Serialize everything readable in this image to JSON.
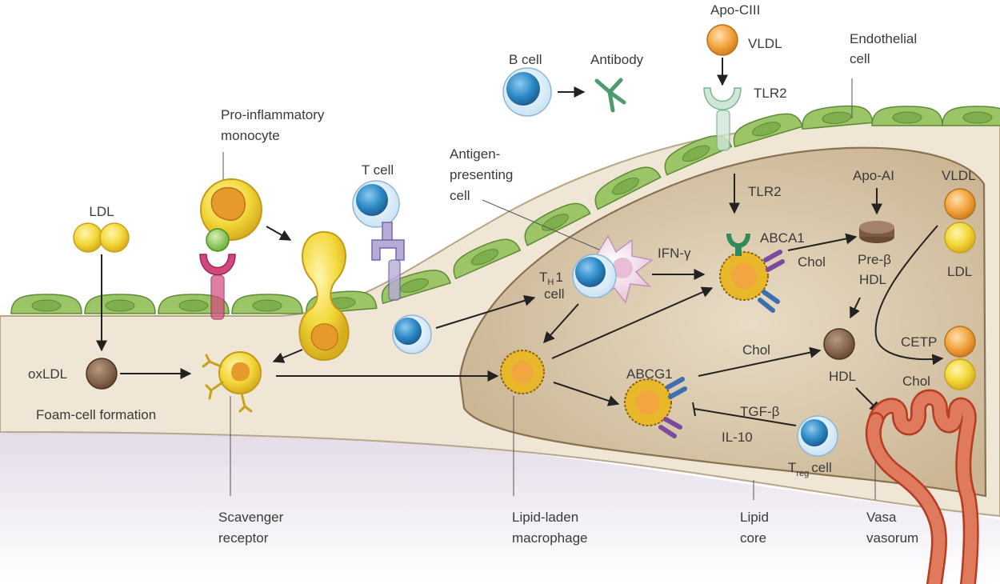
{
  "labels": {
    "ldl": "LDL",
    "oxldl": "oxLDL",
    "foam_cell_formation": "Foam-cell formation",
    "scavenger_1": "Scavenger",
    "scavenger_2": "receptor",
    "monocyte_1": "Pro-inflammatory",
    "monocyte_2": "monocyte",
    "t_cell": "T cell",
    "b_cell": "B cell",
    "antibody": "Antibody",
    "apo_ciii": "Apo-CIII",
    "vldl_top": "VLDL",
    "tlr2_top": "TLR2",
    "endothelial_1": "Endothelial",
    "endothelial_2": "cell",
    "apc_1": "Antigen-",
    "apc_2": "presenting",
    "apc_3": "cell",
    "th1_t": "T",
    "th1_sub": "H",
    "th1_1": "1",
    "th1_cell": "cell",
    "ifn": "IFN-γ",
    "tlr2_mid": "TLR2",
    "abca1": "ABCA1",
    "chol_1": "Chol",
    "apo_ai": "Apo-AI",
    "pre_beta": "Pre-β",
    "hdl_pre": "HDL",
    "vldl_right": "VLDL",
    "ldl_right": "LDL",
    "abcg1": "ABCG1",
    "chol_2": "Chol",
    "hdl": "HDL",
    "cetp": "CETP",
    "chol_3": "Chol",
    "tgf": "TGF-β",
    "il10": "IL-10",
    "treg_t": "T",
    "treg_sub": "reg",
    "treg_cell": "cell",
    "lipid_laden_1": "Lipid-laden",
    "lipid_laden_2": "macrophage",
    "lipid_core_1": "Lipid",
    "lipid_core_2": "core",
    "vasa_1": "Vasa",
    "vasa_2": "vasorum"
  },
  "colors": {
    "endothelium": "#9cc568",
    "endothelium_dark": "#6e9a43",
    "intima": "#efe6d6",
    "lipid_core": "#d8c6ab",
    "media": "#ddd3e3",
    "ldl_yellow": "#f3df3a",
    "vldl_orange": "#f0a23a",
    "oxldl_brown": "#7a5a42",
    "cell_blue": "#2e8bc4",
    "receptor_pink": "#d4477e",
    "receptor_green": "#2f8a5c",
    "receptor_purple": "#7b4a9c",
    "receptor_blue": "#3d6fb0",
    "vessel_red": "#d0573b"
  }
}
